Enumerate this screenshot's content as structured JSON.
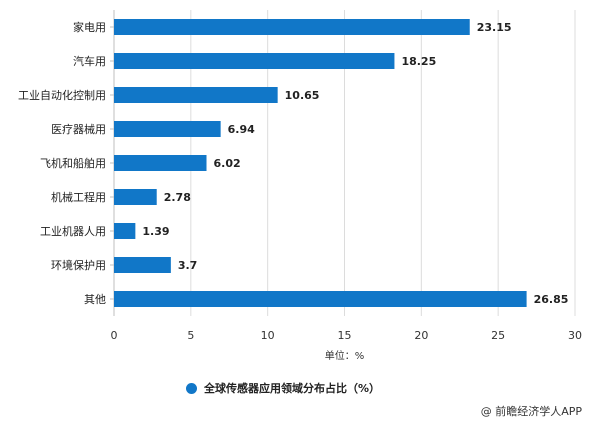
{
  "colors": {
    "bar": "#1177c8",
    "grid": "#dcdcdc",
    "axis_text": "#333333",
    "label_text": "#222222"
  },
  "credit": "@ 前瞻经济学人APP",
  "chart_data": {
    "type": "bar",
    "orientation": "horizontal",
    "categories": [
      "家电用",
      "汽车用",
      "工业自动化控制用",
      "医疗器械用",
      "飞机和船舶用",
      "机械工程用",
      "工业机器人用",
      "环境保护用",
      "其他"
    ],
    "series": [
      {
        "name": "全球传感器应用领域分布占比（%）",
        "values": [
          23.15,
          18.25,
          10.65,
          6.94,
          6.02,
          2.78,
          1.39,
          3.7,
          26.85
        ]
      }
    ],
    "value_labels": [
      "23.15",
      "18.25",
      "10.65",
      "6.94",
      "6.02",
      "2.78",
      "1.39",
      "3.7",
      "26.85"
    ],
    "xlim": [
      0,
      30
    ],
    "xticks": [
      0,
      5,
      10,
      15,
      20,
      25,
      30
    ],
    "xlabel": "单位：%",
    "grid": true,
    "legend_position": "bottom"
  }
}
